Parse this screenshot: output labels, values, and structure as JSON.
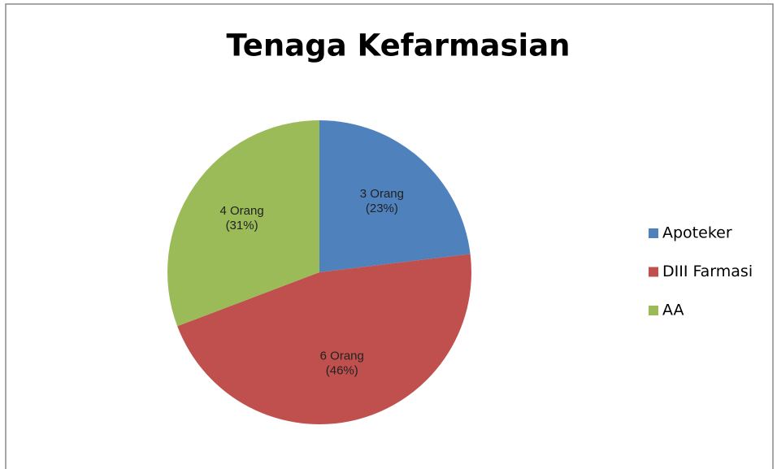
{
  "chart_data": {
    "type": "pie",
    "title": "Tenaga Kefarmasian",
    "categories": [
      "Apoteker",
      "DIII Farmasi",
      "AA"
    ],
    "values": [
      3,
      6,
      4
    ],
    "value_labels": [
      [
        "3 Orang",
        "(23%)"
      ],
      [
        "6 Orang",
        "(46%)"
      ],
      [
        "4 Orang",
        "(31%)"
      ]
    ],
    "colors": [
      "#4f81bd",
      "#c0504d",
      "#9bbb59"
    ],
    "legend": "right"
  }
}
